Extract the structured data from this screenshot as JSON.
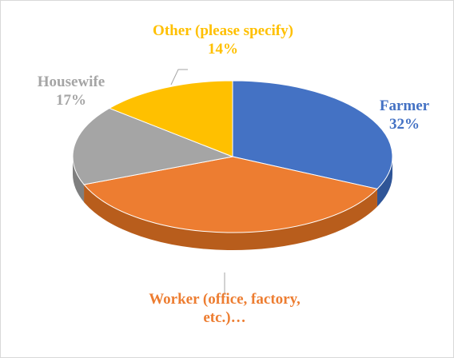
{
  "chart_data": {
    "type": "pie",
    "categories": [
      "Farmer",
      "Worker (office, factory, etc.)…",
      "Housewife",
      "Other (please specify)"
    ],
    "values": [
      32,
      37,
      17,
      14
    ],
    "value_labels": [
      "32%",
      null,
      "17%",
      "14%"
    ],
    "colors": [
      "#4472c4",
      "#ed7d31",
      "#a5a5a5",
      "#ffc000"
    ],
    "side_colors": [
      "#2f5597",
      "#b85d1c",
      "#7f7f7f",
      "#c99700"
    ]
  }
}
